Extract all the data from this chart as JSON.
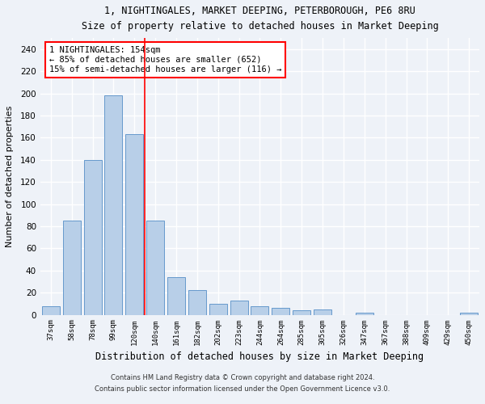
{
  "title1": "1, NIGHTINGALES, MARKET DEEPING, PETERBOROUGH, PE6 8RU",
  "title2": "Size of property relative to detached houses in Market Deeping",
  "xlabel": "Distribution of detached houses by size in Market Deeping",
  "ylabel": "Number of detached properties",
  "categories": [
    "37sqm",
    "58sqm",
    "78sqm",
    "99sqm",
    "120sqm",
    "140sqm",
    "161sqm",
    "182sqm",
    "202sqm",
    "223sqm",
    "244sqm",
    "264sqm",
    "285sqm",
    "305sqm",
    "326sqm",
    "347sqm",
    "367sqm",
    "388sqm",
    "409sqm",
    "429sqm",
    "450sqm"
  ],
  "values": [
    8,
    85,
    140,
    198,
    163,
    85,
    34,
    22,
    10,
    13,
    8,
    6,
    4,
    5,
    0,
    2,
    0,
    0,
    0,
    0,
    2
  ],
  "bar_color": "#b8cfe8",
  "bar_edge_color": "#6699cc",
  "vline_color": "red",
  "annotation_text": "1 NIGHTINGALES: 154sqm\n← 85% of detached houses are smaller (652)\n15% of semi-detached houses are larger (116) →",
  "annotation_box_color": "white",
  "annotation_box_edge": "red",
  "ylim": [
    0,
    250
  ],
  "yticks": [
    0,
    20,
    40,
    60,
    80,
    100,
    120,
    140,
    160,
    180,
    200,
    220,
    240
  ],
  "footer1": "Contains HM Land Registry data © Crown copyright and database right 2024.",
  "footer2": "Contains public sector information licensed under the Open Government Licence v3.0.",
  "bg_color": "#eef2f8",
  "grid_color": "#ffffff"
}
